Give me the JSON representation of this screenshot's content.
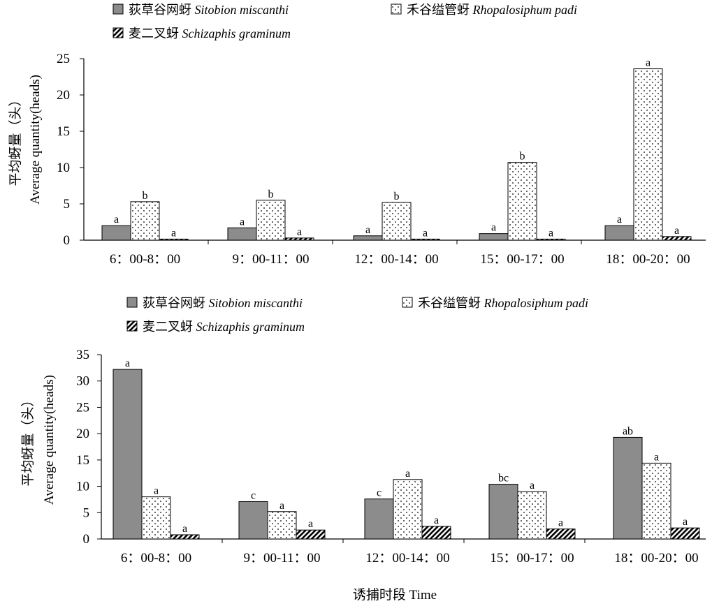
{
  "colors": {
    "sitobion": "#8c8c8c",
    "rhopalosiphum": "#ffffff",
    "schizaphis": "#333333",
    "axis": "#000000"
  },
  "xlabel_common": "诱捕时段 Time",
  "chart_data": [
    {
      "type": "bar",
      "categories": [
        "6：00-8：00",
        "9：00-11：00",
        "12：00-14：00",
        "15：00-17：00",
        "18：00-20：00"
      ],
      "ylim": [
        0,
        25
      ],
      "yticks": [
        0,
        5,
        10,
        15,
        20,
        25
      ],
      "ylabel_cn": "平均蚜量（头）",
      "ylabel_en": "Average quantity(heads)",
      "legend": [
        {
          "cn": "荻草谷网蚜",
          "en": "Sitobion miscanthi",
          "pattern": "solid-gray"
        },
        {
          "cn": "禾谷缢管蚜",
          "en": "Rhopalosiphum padi",
          "pattern": "dots"
        },
        {
          "cn": "麦二叉蚜",
          "en": "Schizaphis graminum",
          "pattern": "hatch"
        }
      ],
      "series": [
        {
          "name": "荻草谷网蚜 Sitobion miscanthi",
          "values": [
            2.0,
            1.7,
            0.6,
            0.9,
            2.0
          ],
          "labels": [
            "a",
            "a",
            "a",
            "a",
            "a"
          ]
        },
        {
          "name": "禾谷缢管蚜 Rhopalosiphum padi",
          "values": [
            5.3,
            5.5,
            5.2,
            10.7,
            23.6
          ],
          "labels": [
            "b",
            "b",
            "b",
            "b",
            "a"
          ]
        },
        {
          "name": "麦二叉蚜 Schizaphis graminum",
          "values": [
            0.15,
            0.3,
            0.15,
            0.15,
            0.5
          ],
          "labels": [
            "a",
            "a",
            "a",
            "a",
            "a"
          ]
        }
      ]
    },
    {
      "type": "bar",
      "categories": [
        "6：00-8：00",
        "9：00-11：00",
        "12：00-14：00",
        "15：00-17：00",
        "18：00-20：00"
      ],
      "ylim": [
        0,
        35
      ],
      "yticks": [
        0,
        5,
        10,
        15,
        20,
        25,
        30,
        35
      ],
      "ylabel_cn": "平均蚜量（头）",
      "ylabel_en": "Average quantity(heads)",
      "legend": [
        {
          "cn": "荻草谷网蚜",
          "en": "Sitobion miscanthi",
          "pattern": "solid-gray"
        },
        {
          "cn": "禾谷缢管蚜",
          "en": "Rhopalosiphum padi",
          "pattern": "dots"
        },
        {
          "cn": "麦二叉蚜",
          "en": "Schizaphis graminum",
          "pattern": "hatch"
        }
      ],
      "series": [
        {
          "name": "荻草谷网蚜 Sitobion miscanthi",
          "values": [
            32.2,
            7.1,
            7.6,
            10.4,
            19.3
          ],
          "labels": [
            "a",
            "c",
            "c",
            "bc",
            "ab"
          ]
        },
        {
          "name": "禾谷缢管蚜 Rhopalosiphum padi",
          "values": [
            8.0,
            5.2,
            11.3,
            9.0,
            14.4
          ],
          "labels": [
            "a",
            "a",
            "a",
            "a",
            "a"
          ]
        },
        {
          "name": "麦二叉蚜 Schizaphis graminum",
          "values": [
            0.8,
            1.7,
            2.4,
            1.9,
            2.1
          ],
          "labels": [
            "a",
            "a",
            "a",
            "a",
            "a"
          ]
        }
      ]
    }
  ]
}
